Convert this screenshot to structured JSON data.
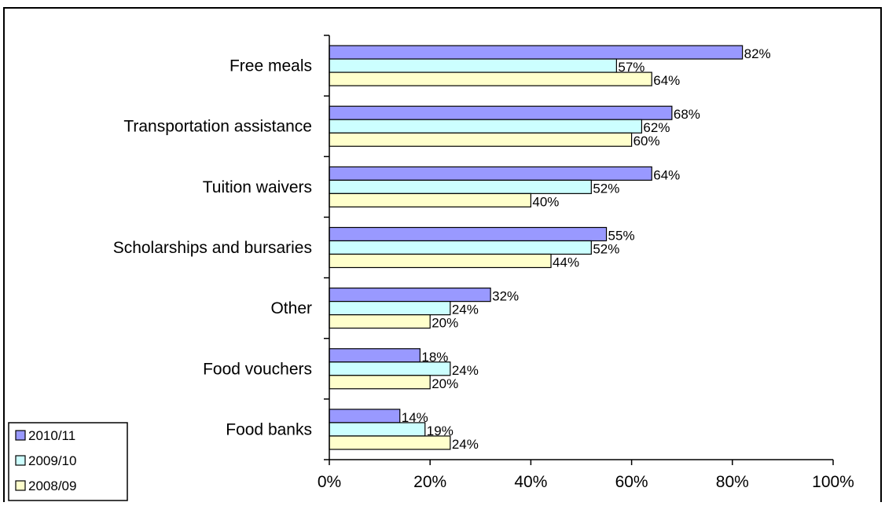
{
  "chart_data": {
    "type": "bar",
    "orientation": "horizontal",
    "categories": [
      "Free meals",
      "Transportation assistance",
      "Tuition waivers",
      "Scholarships and bursaries",
      "Other",
      "Food vouchers",
      "Food banks"
    ],
    "series": [
      {
        "name": "2010/11",
        "color": "#9999ff",
        "values": [
          82,
          68,
          64,
          55,
          32,
          18,
          14
        ],
        "labels": [
          "82%",
          "68%",
          "64%",
          "55%",
          "32%",
          "18%",
          "14%"
        ]
      },
      {
        "name": "2009/10",
        "color": "#ccffff",
        "values": [
          57,
          62,
          52,
          52,
          24,
          24,
          19
        ],
        "labels": [
          "57%",
          "62%",
          "52%",
          "52%",
          "24%",
          "24%",
          "19%"
        ]
      },
      {
        "name": "2008/09",
        "color": "#ffffcc",
        "values": [
          64,
          60,
          40,
          44,
          20,
          20,
          24
        ],
        "labels": [
          "64%",
          "60%",
          "40%",
          "44%",
          "20%",
          "20%",
          "24%"
        ]
      }
    ],
    "xlim": [
      0,
      100
    ],
    "x_ticks": [
      0,
      20,
      40,
      60,
      80,
      100
    ],
    "x_tick_labels": [
      "0%",
      "20%",
      "40%",
      "60%",
      "80%",
      "100%"
    ],
    "title": "",
    "xlabel": "",
    "ylabel": "",
    "grid": false,
    "legend_position": "bottom-left"
  }
}
